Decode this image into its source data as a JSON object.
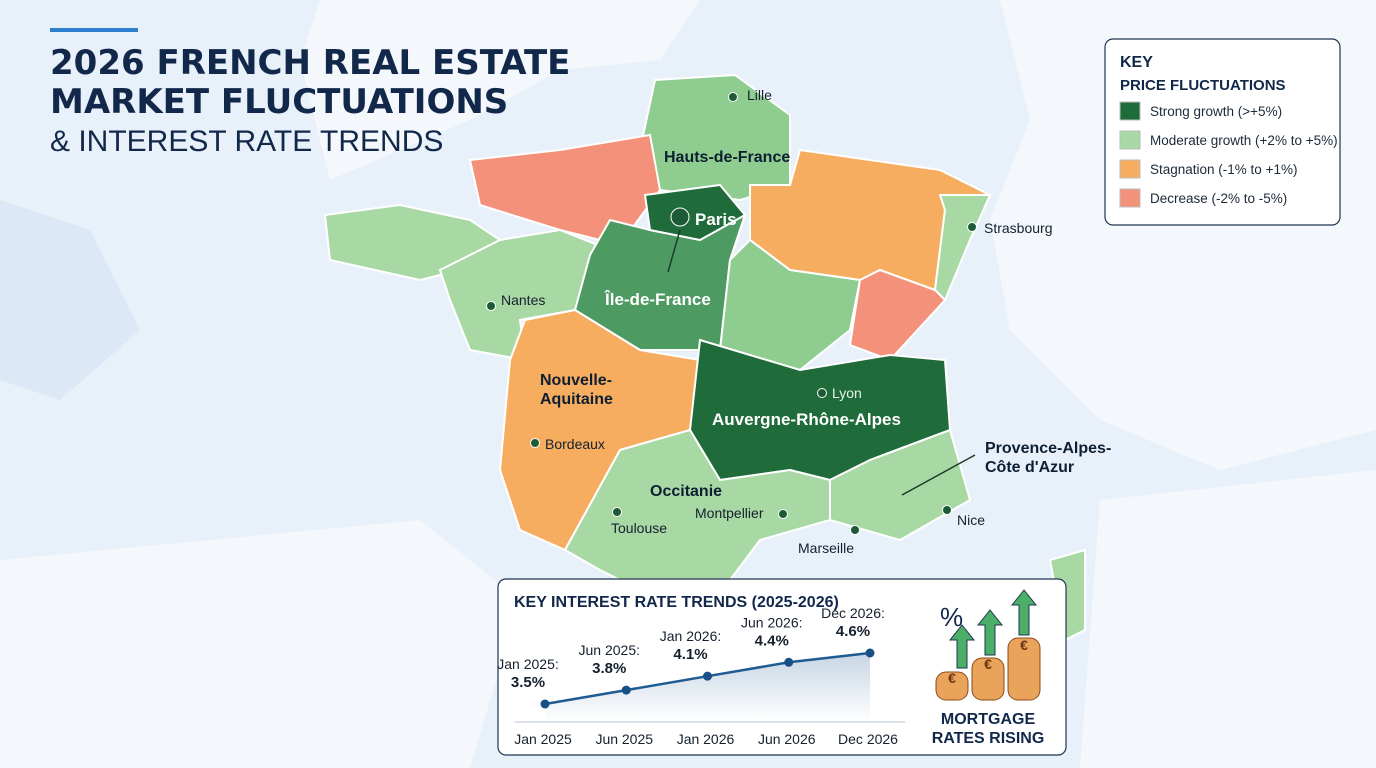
{
  "header": {
    "title_line1": "2026 FRENCH REAL ESTATE",
    "title_line2": "MARKET FLUCTUATIONS",
    "subtitle": "& INTEREST RATE TRENDS"
  },
  "key": {
    "title": "KEY",
    "subtitle": "PRICE FLUCTUATIONS",
    "items": [
      {
        "label": "Strong growth (>+5%)",
        "color": "#1f6b3a"
      },
      {
        "label": "Moderate growth (+2% to +5%)",
        "color": "#a8d8a4"
      },
      {
        "label": "Stagnation (-1% to +1%)",
        "color": "#f7ad5f"
      },
      {
        "label": "Decrease (-2% to -5%)",
        "color": "#f4917b"
      }
    ]
  },
  "map": {
    "regions": [
      "Hauts-de-France",
      "Paris",
      "Île-de-France",
      "Nouvelle-\nAquitaine",
      "Auvergne-Rhône-Alpes",
      "Occitanie",
      "Provence-Alpes-\nCôte d'Azur"
    ],
    "cities": [
      "Lille",
      "Strasbourg",
      "Nantes",
      "Lyon",
      "Bordeaux",
      "Toulouse",
      "Montpellier",
      "Nice",
      "Marseille"
    ]
  },
  "chart_data": {
    "type": "line",
    "title": "KEY INTEREST RATE TRENDS (2025-2026)",
    "categories": [
      "Jan 2025",
      "Jun 2025",
      "Jan 2026",
      "Jun 2026",
      "Dec 2026"
    ],
    "series": [
      {
        "name": "Interest rate",
        "color": "#1f5b93",
        "values": [
          3.5,
          3.8,
          4.1,
          4.4,
          4.6
        ],
        "value_labels": [
          "3.5%",
          "3.8%",
          "4.1%",
          "4.4%",
          "4.6%"
        ],
        "point_labels": [
          "Jan 2025:",
          "Jun 2025:",
          "Jan 2026:",
          "Jun 2026:",
          "Dec 2026:"
        ]
      }
    ]
  },
  "badge": {
    "icon": "%",
    "coin": "€",
    "text_line1": "MORTGAGE",
    "text_line2": "RATES RISING"
  }
}
